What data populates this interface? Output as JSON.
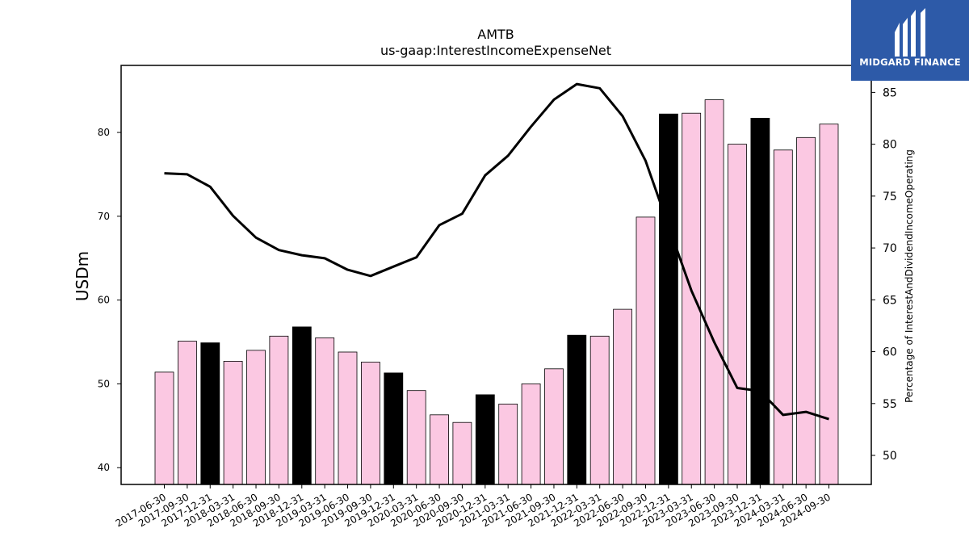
{
  "chart_data": {
    "type": "bar",
    "title": "AMTB",
    "subtitle": "us-gaap:InterestIncomeExpenseNet",
    "ylabel": "USDm",
    "y2label": "Percentage of InterestAndDividendIncomeOperating",
    "ylim": [
      38,
      88
    ],
    "y2lim": [
      47.2,
      87.6
    ],
    "yticks": [
      40,
      50,
      60,
      70,
      80
    ],
    "y2ticks": [
      50,
      55,
      60,
      65,
      70,
      75,
      80,
      85
    ],
    "categories": [
      "2017-06-30",
      "2017-09-30",
      "2017-12-31",
      "2018-03-31",
      "2018-06-30",
      "2018-09-30",
      "2018-12-31",
      "2019-03-31",
      "2019-06-30",
      "2019-09-30",
      "2019-12-31",
      "2020-03-31",
      "2020-06-30",
      "2020-09-30",
      "2020-12-31",
      "2021-03-31",
      "2021-06-30",
      "2021-09-30",
      "2021-12-31",
      "2022-03-31",
      "2022-06-30",
      "2022-09-30",
      "2022-12-31",
      "2023-03-31",
      "2023-06-30",
      "2023-09-30",
      "2023-12-31",
      "2024-03-31",
      "2024-06-30",
      "2024-09-30"
    ],
    "series": [
      {
        "type": "bar",
        "axis": "left",
        "values": [
          51.4,
          55.1,
          54.9,
          52.7,
          54.0,
          55.7,
          56.8,
          55.5,
          53.8,
          52.6,
          51.3,
          49.2,
          46.3,
          45.4,
          48.7,
          47.6,
          50.0,
          51.8,
          55.8,
          55.7,
          58.9,
          69.9,
          82.2,
          82.3,
          83.9,
          78.6,
          81.7,
          77.9,
          79.4,
          81.0
        ],
        "highlight": [
          false,
          false,
          true,
          false,
          false,
          false,
          true,
          false,
          false,
          false,
          true,
          false,
          false,
          false,
          true,
          false,
          false,
          false,
          true,
          false,
          false,
          false,
          true,
          false,
          false,
          false,
          true,
          false,
          false,
          false
        ],
        "color": "#fbc8e2",
        "highlight_color": "#000000"
      },
      {
        "type": "line",
        "axis": "right",
        "values": [
          77.2,
          77.1,
          75.9,
          73.1,
          71.0,
          69.8,
          69.3,
          69.0,
          67.9,
          67.3,
          68.2,
          69.1,
          72.2,
          73.3,
          77.0,
          78.9,
          81.7,
          84.3,
          85.8,
          85.4,
          82.7,
          78.4,
          72.1,
          65.9,
          60.9,
          56.5,
          56.2,
          53.9,
          54.2,
          53.5
        ],
        "color": "#000000"
      }
    ],
    "grid": false
  },
  "logo": {
    "text": "MIDGARD FINANCE",
    "background": "#2d5aa8"
  }
}
